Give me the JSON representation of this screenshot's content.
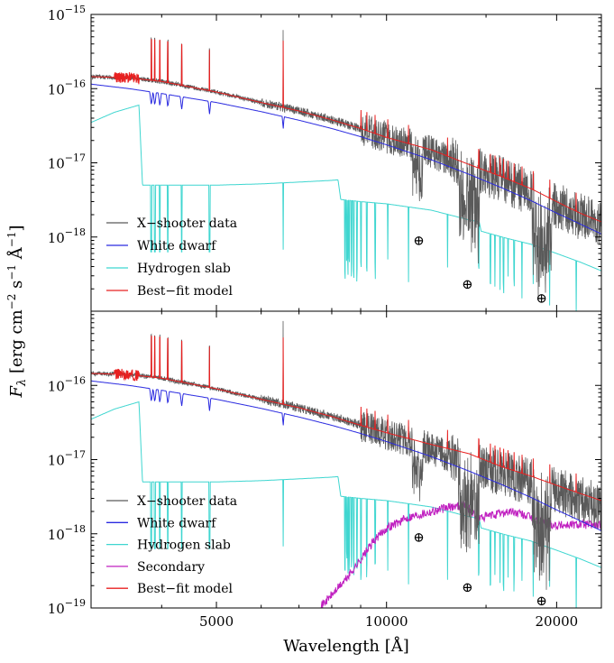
{
  "figure": {
    "xlabel": "Wavelength [Å]",
    "ylabel_main": "F",
    "ylabel_sub": "λ",
    "ylabel_units": " [erg cm",
    "ylabel_exp1": "−2",
    "ylabel_s": " s",
    "ylabel_exp2": "−1",
    "ylabel_A": " Å",
    "ylabel_exp3": "−1",
    "ylabel_close": "]",
    "earth_symbol": "⊕"
  },
  "colors": {
    "data": "#5a5a5a",
    "white_dwarf": "#2a2ae0",
    "hydrogen_slab": "#3fd6d0",
    "secondary": "#c020c0",
    "best_fit": "#e82020"
  },
  "chart_data": [
    {
      "type": "line",
      "panel": "top",
      "xscale": "log",
      "yscale": "log",
      "xlim": [
        3000,
        24000
      ],
      "ylim": [
        1e-19,
        1e-15
      ],
      "ylim_log": [
        -19,
        -15
      ],
      "y_ticks": [
        {
          "mant": "10",
          "exp": "−15",
          "log": -15
        },
        {
          "mant": "10",
          "exp": "−16",
          "log": -16
        },
        {
          "mant": "10",
          "exp": "−17",
          "log": -17
        },
        {
          "mant": "10",
          "exp": "−18",
          "log": -18
        }
      ],
      "legend": [
        "X−shooter data",
        "White dwarf",
        "Hydrogen slab",
        "Best−fit model"
      ],
      "legend_keys": [
        "data",
        "white_dwarf",
        "hydrogen_slab",
        "best_fit"
      ],
      "telluric_markers": [
        {
          "x": 11400,
          "y": 9e-19
        },
        {
          "x": 13900,
          "y": 2.3e-19
        },
        {
          "x": 18800,
          "y": 1.5e-19
        }
      ],
      "series": [
        {
          "name": "White dwarf",
          "key": "white_dwarf",
          "x": [
            3000,
            3500,
            4000,
            5000,
            6000,
            7000,
            8000,
            9000,
            10000,
            12000,
            14000,
            16000,
            18000,
            20000,
            22000,
            24000
          ],
          "y": [
            1.15e-16,
            1e-16,
            8.6e-17,
            6.5e-17,
            4.9e-17,
            3.75e-17,
            2.9e-17,
            2.25e-17,
            1.75e-17,
            1.1e-17,
            7e-18,
            4.6e-18,
            3.1e-18,
            2.1e-18,
            1.5e-18,
            1.1e-18
          ]
        },
        {
          "name": "Hydrogen slab",
          "key": "hydrogen_slab",
          "x": [
            3000,
            3300,
            3646,
            3700,
            4000,
            5000,
            6000,
            7000,
            8000,
            8206,
            8300,
            9000,
            10000,
            12000,
            14000,
            14588,
            14700,
            16000,
            18000,
            20000,
            22000,
            24000
          ],
          "y": [
            3.5e-17,
            4.8e-17,
            6e-17,
            5e-18,
            5e-18,
            5e-18,
            5.2e-18,
            5.5e-18,
            5.8e-18,
            5.9e-18,
            3.2e-18,
            3e-18,
            2.8e-18,
            2.3e-18,
            1.7e-18,
            1.6e-18,
            1.2e-18,
            1e-18,
            8e-19,
            6e-19,
            4.6e-19,
            3.5e-19
          ]
        },
        {
          "name": "Best−fit model",
          "key": "best_fit",
          "x": [
            3000,
            3500,
            4000,
            5000,
            6000,
            7000,
            8000,
            9000,
            10000,
            12000,
            14000,
            16000,
            18000,
            20000,
            22000,
            24000
          ],
          "y": [
            1.45e-16,
            1.4e-16,
            1.25e-16,
            9e-17,
            6.5e-17,
            5e-17,
            3.8e-17,
            2.9e-17,
            2.2e-17,
            1.5e-17,
            9.5e-18,
            6.5e-18,
            4.5e-18,
            3e-18,
            2.1e-18,
            1.6e-18
          ]
        },
        {
          "name": "X−shooter data",
          "key": "data",
          "x": [
            3000,
            3500,
            4000,
            5000,
            6000,
            7000,
            8000,
            9000,
            10000,
            12000,
            14000,
            16000,
            18000,
            20000,
            22000,
            24000
          ],
          "y": [
            1.45e-16,
            1.4e-16,
            1.25e-16,
            9e-17,
            6.5e-17,
            5e-17,
            3.8e-17,
            2.9e-17,
            2.2e-17,
            1.4e-17,
            8.5e-18,
            6e-18,
            4e-18,
            2.7e-18,
            1.9e-18,
            1.5e-18
          ]
        }
      ]
    },
    {
      "type": "line",
      "panel": "bottom",
      "xscale": "log",
      "yscale": "log",
      "xlim": [
        3000,
        24000
      ],
      "ylim": [
        1e-19,
        1e-15
      ],
      "ylim_log": [
        -19,
        -15
      ],
      "xlabel": "Wavelength [Å]",
      "x_ticks": [
        {
          "label": "5000",
          "value": 5000
        },
        {
          "label": "10000",
          "value": 10000
        },
        {
          "label": "20000",
          "value": 20000
        }
      ],
      "y_ticks": [
        {
          "mant": "10",
          "exp": "−16",
          "log": -16
        },
        {
          "mant": "10",
          "exp": "−17",
          "log": -17
        },
        {
          "mant": "10",
          "exp": "−18",
          "log": -18
        },
        {
          "mant": "10",
          "exp": "−19",
          "log": -19
        }
      ],
      "legend": [
        "X−shooter data",
        "White dwarf",
        "Hydrogen slab",
        "Secondary",
        "Best−fit model"
      ],
      "legend_keys": [
        "data",
        "white_dwarf",
        "hydrogen_slab",
        "secondary",
        "best_fit"
      ],
      "telluric_markers": [
        {
          "x": 11400,
          "y": 9e-19
        },
        {
          "x": 13900,
          "y": 1.9e-19
        },
        {
          "x": 18800,
          "y": 1.25e-19
        }
      ],
      "series": [
        {
          "name": "White dwarf",
          "key": "white_dwarf",
          "x": [
            3000,
            3500,
            4000,
            5000,
            6000,
            7000,
            8000,
            9000,
            10000,
            12000,
            14000,
            16000,
            18000,
            20000,
            22000,
            24000
          ],
          "y": [
            1.15e-16,
            1e-16,
            8.6e-17,
            6.5e-17,
            4.9e-17,
            3.75e-17,
            2.9e-17,
            2.25e-17,
            1.75e-17,
            1.1e-17,
            7e-18,
            4.6e-18,
            3.1e-18,
            2.1e-18,
            1.5e-18,
            1.1e-18
          ]
        },
        {
          "name": "Hydrogen slab",
          "key": "hydrogen_slab",
          "x": [
            3000,
            3300,
            3646,
            3700,
            4000,
            5000,
            6000,
            7000,
            8000,
            8206,
            8300,
            9000,
            10000,
            12000,
            14000,
            14588,
            14700,
            16000,
            18000,
            20000,
            22000,
            24000
          ],
          "y": [
            3.5e-17,
            4.8e-17,
            6e-17,
            5e-18,
            5e-18,
            5e-18,
            5.2e-18,
            5.5e-18,
            5.8e-18,
            5.9e-18,
            3.2e-18,
            3e-18,
            2.8e-18,
            2.3e-18,
            1.7e-18,
            1.6e-18,
            1.2e-18,
            1e-18,
            8e-19,
            6e-19,
            4.6e-19,
            3.5e-19
          ]
        },
        {
          "name": "Secondary",
          "key": "secondary",
          "x": [
            7600,
            8000,
            8500,
            9000,
            9500,
            10000,
            11000,
            12000,
            13000,
            13800,
            14500,
            15500,
            16500,
            17500,
            18500,
            20000,
            22000,
            24000
          ],
          "y": [
            1e-19,
            1.5e-19,
            2.5e-19,
            4.5e-19,
            8e-19,
            1.2e-18,
            1.7e-18,
            2e-18,
            2.3e-18,
            2.5e-18,
            1.6e-18,
            1.8e-18,
            2e-18,
            1.8e-18,
            1.5e-18,
            1.3e-18,
            1.35e-18,
            1.3e-18
          ]
        },
        {
          "name": "Best−fit model",
          "key": "best_fit",
          "x": [
            3000,
            3500,
            4000,
            5000,
            6000,
            7000,
            8000,
            9000,
            10000,
            12000,
            14000,
            16000,
            18000,
            20000,
            22000,
            24000
          ],
          "y": [
            1.45e-16,
            1.4e-16,
            1.25e-16,
            9e-17,
            6.5e-17,
            5e-17,
            3.8e-17,
            2.9e-17,
            2.3e-17,
            1.6e-17,
            1.2e-17,
            8e-18,
            6e-18,
            4.5e-18,
            3.5e-18,
            2.8e-18
          ]
        },
        {
          "name": "X−shooter data",
          "key": "data",
          "x": [
            3000,
            3500,
            4000,
            5000,
            6000,
            7000,
            8000,
            9000,
            10000,
            12000,
            14000,
            16000,
            18000,
            20000,
            22000,
            24000
          ],
          "y": [
            1.45e-16,
            1.4e-16,
            1.25e-16,
            9e-17,
            6.5e-17,
            5e-17,
            3.8e-17,
            2.9e-17,
            2.2e-17,
            1.4e-17,
            8.5e-18,
            6.5e-18,
            5e-18,
            3.8e-18,
            2.9e-18,
            2.3e-18
          ]
        }
      ]
    }
  ]
}
